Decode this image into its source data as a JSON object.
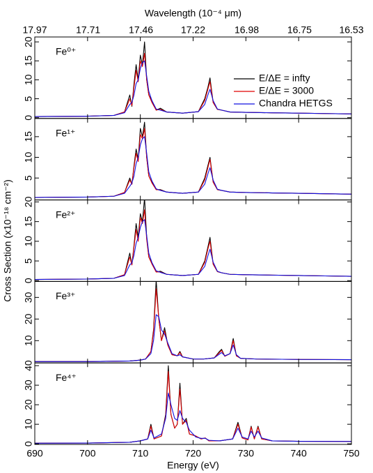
{
  "chart_data": [
    {
      "type": "line",
      "label": "Fe⁰⁺",
      "x2label": "Wavelength (10⁻⁴ μm)",
      "x2lim": [
        17.97,
        16.53
      ],
      "x2ticks": [
        17.97,
        17.71,
        17.46,
        17.22,
        16.98,
        16.75,
        16.53
      ],
      "xlim": [
        690,
        750
      ],
      "ylim": [
        -0.2,
        21.3
      ],
      "yticks": [
        0,
        5,
        10,
        15,
        20
      ],
      "x": [
        690,
        700,
        705,
        707,
        708,
        708.4,
        708.8,
        709.2,
        709.6,
        710,
        710.4,
        710.8,
        711.2,
        711.6,
        712.2,
        713,
        713.8,
        715,
        718,
        721,
        722.2,
        722.8,
        723.2,
        723.8,
        724.6,
        725.4,
        727,
        730,
        735,
        740,
        745,
        750
      ],
      "series": [
        {
          "name": "E/ΔE = infty",
          "color": "#000000",
          "values": [
            0.3,
            0.4,
            0.6,
            1.5,
            6,
            3,
            9,
            14,
            10,
            16.5,
            14,
            20,
            10,
            6,
            4.5,
            2,
            2.5,
            1.5,
            1.2,
            1.6,
            5,
            8,
            10.5,
            4,
            2.2,
            2,
            1.5,
            1.4,
            1.3,
            1.2,
            1.1,
            1.0
          ]
        },
        {
          "name": "E/ΔE = 3000",
          "color": "#e00000",
          "values": [
            0.3,
            0.4,
            0.6,
            1.5,
            5,
            3.2,
            8,
            12.5,
            9.5,
            15,
            13.5,
            17,
            10,
            6,
            4,
            2,
            2.2,
            1.5,
            1.2,
            1.6,
            4.5,
            7.5,
            9.5,
            4,
            2.2,
            2,
            1.5,
            1.4,
            1.3,
            1.2,
            1.1,
            1.0
          ]
        },
        {
          "name": "Chandra HETGS",
          "color": "#1010e0",
          "values": [
            0.3,
            0.4,
            0.6,
            1.3,
            3.5,
            4,
            6,
            9,
            10,
            13,
            14.5,
            15,
            11,
            7,
            4.5,
            2.3,
            2,
            1.5,
            1.2,
            1.6,
            3.5,
            6,
            7.5,
            4.5,
            2.3,
            2,
            1.5,
            1.4,
            1.3,
            1.2,
            1.1,
            1.0
          ]
        }
      ]
    },
    {
      "type": "line",
      "label": "Fe¹⁺",
      "xlim": [
        690,
        750
      ],
      "ylim": [
        -0.3,
        19.4
      ],
      "yticks": [
        5,
        10,
        15
      ],
      "x": [
        690,
        700,
        705,
        707,
        708,
        708.4,
        708.8,
        709.2,
        709.6,
        710,
        710.4,
        710.8,
        711.2,
        711.6,
        712.2,
        713,
        713.8,
        715,
        718,
        721,
        722.2,
        722.8,
        723.2,
        723.8,
        724.6,
        725.4,
        727,
        730,
        735,
        740,
        745,
        750
      ],
      "series": [
        {
          "color": "#000000",
          "values": [
            0.3,
            0.4,
            0.6,
            1.5,
            5,
            3.5,
            8,
            12,
            9.5,
            17,
            15,
            18.5,
            10,
            5.5,
            4,
            2.2,
            2.2,
            1.6,
            1.3,
            1.6,
            5,
            8,
            10,
            4,
            2.2,
            2,
            1.6,
            1.5,
            1.4,
            1.3,
            1.2,
            1.1
          ]
        },
        {
          "color": "#e00000",
          "values": [
            0.3,
            0.4,
            0.6,
            1.5,
            4.5,
            3.5,
            7.5,
            11,
            9,
            15.5,
            14.5,
            17,
            10,
            5.5,
            3.8,
            2.2,
            2.1,
            1.6,
            1.3,
            1.6,
            4.5,
            7.5,
            9.5,
            4,
            2.2,
            2,
            1.6,
            1.5,
            1.4,
            1.3,
            1.2,
            1.1
          ]
        },
        {
          "color": "#1010e0",
          "values": [
            0.3,
            0.4,
            0.6,
            1.3,
            3,
            3.8,
            5.5,
            8.5,
            10,
            13,
            14.5,
            15,
            11,
            6.5,
            4.3,
            2.4,
            2,
            1.6,
            1.3,
            1.6,
            3.5,
            6,
            7.5,
            4.5,
            2.3,
            2,
            1.6,
            1.5,
            1.4,
            1.3,
            1.2,
            1.1
          ]
        }
      ]
    },
    {
      "type": "line",
      "label": "Fe²⁺",
      "ylabel": "Cross Section (x10⁻¹⁸ cm⁻²)",
      "xlim": [
        690,
        750
      ],
      "ylim": [
        -0.2,
        20.5
      ],
      "yticks": [
        0,
        5,
        10,
        15,
        20
      ],
      "x": [
        690,
        700,
        705,
        707,
        708,
        708.4,
        708.8,
        709.2,
        709.6,
        710,
        710.4,
        710.8,
        711.2,
        711.6,
        712.2,
        713,
        713.8,
        715,
        718,
        721,
        722.2,
        722.8,
        723.2,
        723.8,
        724.6,
        725.4,
        727,
        730,
        735,
        740,
        745,
        750
      ],
      "series": [
        {
          "color": "#000000",
          "values": [
            0.3,
            0.4,
            0.6,
            1.5,
            7,
            4,
            9,
            14.5,
            11,
            17,
            15,
            21,
            11,
            6,
            4.5,
            2.2,
            2.4,
            1.6,
            1.3,
            1.6,
            5,
            8.5,
            11,
            4.2,
            2.3,
            2,
            1.6,
            1.5,
            1.4,
            1.3,
            1.2,
            1.1
          ]
        },
        {
          "color": "#e00000",
          "values": [
            0.3,
            0.4,
            0.6,
            1.5,
            6,
            4,
            8.5,
            13,
            10,
            16,
            14.5,
            18,
            10.5,
            6,
            4.2,
            2.2,
            2.2,
            1.6,
            1.3,
            1.6,
            4.6,
            8,
            10,
            4.2,
            2.3,
            2,
            1.6,
            1.5,
            1.4,
            1.3,
            1.2,
            1.1
          ]
        },
        {
          "color": "#1010e0",
          "values": [
            0.3,
            0.4,
            0.6,
            1.3,
            4,
            4.5,
            6.5,
            9.5,
            11,
            13.5,
            15,
            15.5,
            11.5,
            7,
            4.6,
            2.5,
            2.1,
            1.6,
            1.3,
            1.6,
            3.6,
            6.3,
            8,
            4.7,
            2.4,
            2,
            1.6,
            1.5,
            1.4,
            1.3,
            1.2,
            1.1
          ]
        }
      ]
    },
    {
      "type": "line",
      "label": "Fe³⁺",
      "xlim": [
        690,
        750
      ],
      "ylim": [
        -0.3,
        37.4
      ],
      "yticks": [
        10,
        20,
        30
      ],
      "x": [
        690,
        700,
        708,
        710,
        711,
        712,
        712.5,
        713,
        713.5,
        714,
        714.6,
        715.2,
        716,
        717,
        717.5,
        718,
        720,
        722,
        724,
        725,
        725.4,
        726,
        727,
        727.6,
        728.2,
        729,
        732,
        740,
        750
      ],
      "series": [
        {
          "color": "#000000",
          "values": [
            0.3,
            0.3,
            0.6,
            1,
            1.5,
            5,
            15,
            38,
            20,
            10,
            16,
            8,
            3.5,
            3,
            5,
            2.5,
            1.5,
            1.5,
            2,
            5,
            6,
            2.8,
            4,
            11,
            3,
            1.8,
            1.5,
            1.3,
            1.2
          ]
        },
        {
          "color": "#e00000",
          "values": [
            0.3,
            0.3,
            0.6,
            1,
            1.5,
            5,
            14,
            34,
            20,
            10,
            14.5,
            8,
            3.5,
            3,
            4.5,
            2.5,
            1.5,
            1.5,
            2,
            4.5,
            5.5,
            2.8,
            4,
            10,
            3,
            1.8,
            1.5,
            1.3,
            1.2
          ]
        },
        {
          "color": "#1010e0",
          "values": [
            0.3,
            0.3,
            0.6,
            1,
            1.5,
            4,
            10,
            22,
            21,
            15,
            13,
            9,
            4,
            3,
            3.5,
            2.5,
            1.5,
            1.5,
            2,
            3.8,
            4.5,
            3,
            4,
            8,
            3.5,
            1.8,
            1.5,
            1.3,
            1.2
          ]
        }
      ]
    },
    {
      "type": "line",
      "label": "Fe⁴⁺",
      "xlabel": "Energy (eV)",
      "xlim": [
        690,
        750
      ],
      "xticks": [
        690,
        700,
        710,
        720,
        730,
        740,
        750
      ],
      "ylim": [
        -0.3,
        41.4
      ],
      "yticks": [
        0,
        10,
        20,
        30,
        40
      ],
      "x": [
        690,
        700,
        708,
        710,
        711.4,
        712,
        712.6,
        714,
        714.8,
        715.3,
        715.8,
        716.5,
        717,
        717.5,
        718,
        718.7,
        719.3,
        720.5,
        721.5,
        722.3,
        723,
        725,
        727.5,
        728.5,
        729.3,
        730.4,
        731,
        731.6,
        732.3,
        733,
        735,
        740,
        750
      ],
      "series": [
        {
          "color": "#000000",
          "values": [
            0.3,
            0.4,
            0.8,
            1.5,
            2.5,
            10,
            2.5,
            4,
            15,
            40,
            15,
            8,
            10,
            31,
            10,
            13,
            5,
            4,
            2.5,
            3,
            1.5,
            1.5,
            2.5,
            11,
            3,
            2,
            9,
            2.5,
            9,
            2.5,
            1.5,
            1.3,
            1.2
          ]
        },
        {
          "color": "#e00000",
          "values": [
            0.3,
            0.4,
            0.8,
            1.5,
            2.5,
            9,
            2.5,
            4,
            14,
            37,
            15,
            8,
            10,
            28,
            10,
            12,
            5,
            4,
            2.5,
            3,
            1.5,
            1.5,
            2.5,
            10,
            3,
            2,
            8.5,
            2.5,
            8.5,
            2.5,
            1.5,
            1.3,
            1.2
          ]
        },
        {
          "color": "#1010e0",
          "values": [
            0.3,
            0.4,
            0.8,
            1.5,
            2.5,
            7,
            3,
            5,
            13,
            26,
            20,
            13,
            12,
            17,
            13,
            11,
            7,
            3.5,
            2.8,
            2.8,
            1.8,
            1.5,
            2.5,
            8,
            3.5,
            2.5,
            6.5,
            3.5,
            6.5,
            3,
            1.5,
            1.3,
            1.2
          ]
        }
      ]
    }
  ]
}
